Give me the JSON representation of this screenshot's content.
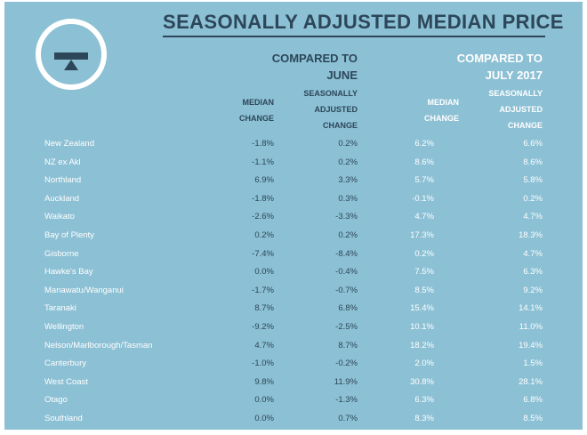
{
  "title": "SEASONALLY ADJUSTED MEDIAN PRICE",
  "groups": {
    "june": "COMPARED TO\nJUNE",
    "july": "COMPARED TO\nJULY 2017"
  },
  "subheaders": {
    "june_median": "MEDIAN\nCHANGE",
    "june_sa": "SEASONALLY\nADJUSTED\nCHANGE",
    "july_median": "MEDIAN\nCHANGE",
    "july_sa": "SEASONALLY\nADJUSTED\nCHANGE"
  },
  "rows": [
    {
      "region": "New Zealand",
      "june_median": "-1.8%",
      "june_sa": "0.2%",
      "july_median": "6.2%",
      "july_sa": "6.6%"
    },
    {
      "region": "NZ ex Akl",
      "june_median": "-1.1%",
      "june_sa": "0.2%",
      "july_median": "8.6%",
      "july_sa": "8.6%"
    },
    {
      "region": "Northland",
      "june_median": "6.9%",
      "june_sa": "3.3%",
      "july_median": "5.7%",
      "july_sa": "5.8%"
    },
    {
      "region": "Auckland",
      "june_median": "-1.8%",
      "june_sa": "0.3%",
      "july_median": "-0.1%",
      "july_sa": "0.2%"
    },
    {
      "region": "Waikato",
      "june_median": "-2.6%",
      "june_sa": "-3.3%",
      "july_median": "4.7%",
      "july_sa": "4.7%"
    },
    {
      "region": "Bay of Plenty",
      "june_median": "0.2%",
      "june_sa": "0.2%",
      "july_median": "17.3%",
      "july_sa": "18.3%"
    },
    {
      "region": "Gisborne",
      "june_median": "-7.4%",
      "june_sa": "-8.4%",
      "july_median": "0.2%",
      "july_sa": "4.7%"
    },
    {
      "region": "Hawke's Bay",
      "june_median": "0.0%",
      "june_sa": "-0.4%",
      "july_median": "7.5%",
      "july_sa": "6.3%"
    },
    {
      "region": "Manawatu/Wanganui",
      "june_median": "-1.7%",
      "june_sa": "-0.7%",
      "july_median": "8.5%",
      "july_sa": "9.2%"
    },
    {
      "region": "Taranaki",
      "june_median": "8.7%",
      "june_sa": "6.8%",
      "july_median": "15.4%",
      "july_sa": "14.1%"
    },
    {
      "region": "Wellington",
      "june_median": "-9.2%",
      "june_sa": "-2.5%",
      "july_median": "10.1%",
      "july_sa": "11.0%"
    },
    {
      "region": "Nelson/Marlborough/Tasman",
      "june_median": "4.7%",
      "june_sa": "8.7%",
      "july_median": "18.2%",
      "july_sa": "19.4%"
    },
    {
      "region": "Canterbury",
      "june_median": "-1.0%",
      "june_sa": "-0.2%",
      "july_median": "2.0%",
      "july_sa": "1.5%"
    },
    {
      "region": "West Coast",
      "june_median": "9.8%",
      "june_sa": "11.9%",
      "july_median": "30.8%",
      "july_sa": "28.1%"
    },
    {
      "region": "Otago",
      "june_median": "0.0%",
      "june_sa": "-1.3%",
      "july_median": "6.3%",
      "july_sa": "6.8%"
    },
    {
      "region": "Southland",
      "june_median": "0.0%",
      "june_sa": "0.7%",
      "july_median": "8.3%",
      "july_sa": "8.5%"
    }
  ],
  "colors": {
    "panel": "#8cc0d4",
    "navy": "#2d4659",
    "white": "#ffffff"
  },
  "icons": {
    "logo": "balance-scale-icon"
  }
}
